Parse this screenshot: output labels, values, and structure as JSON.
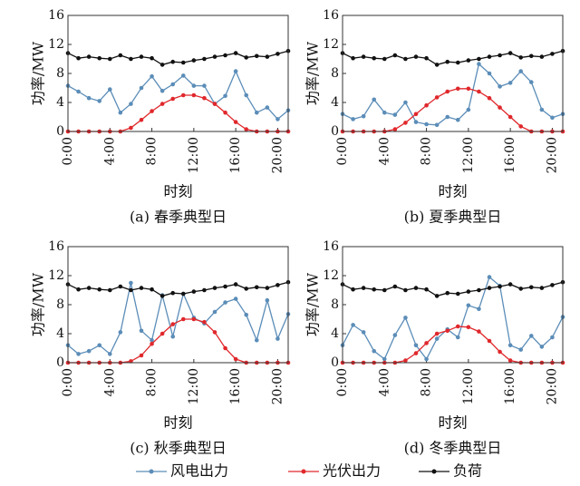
{
  "chart_data": [
    {
      "type": "line",
      "title": "(a) 春季典型日",
      "xlabel": "时刻",
      "ylabel": "功率/MW",
      "x": [
        0,
        1,
        2,
        3,
        4,
        5,
        6,
        7,
        8,
        9,
        10,
        11,
        12,
        13,
        14,
        15,
        16,
        17,
        18,
        19,
        20,
        21
      ],
      "xlim": [
        0,
        21
      ],
      "xticks": [
        {
          "value": 0,
          "label": "0:00"
        },
        {
          "value": 4,
          "label": "4:00"
        },
        {
          "value": 8,
          "label": "8:00"
        },
        {
          "value": 12,
          "label": "12:00"
        },
        {
          "value": 16,
          "label": "16:00"
        },
        {
          "value": 20,
          "label": "20:00"
        }
      ],
      "ylim": [
        0,
        16
      ],
      "yticks": [
        0,
        4,
        8,
        12,
        16
      ],
      "series": [
        {
          "name": "风电出力",
          "color": "#5b8db8",
          "values": [
            6.3,
            5.5,
            4.6,
            4.2,
            5.8,
            2.6,
            3.8,
            6.0,
            7.6,
            5.6,
            6.5,
            7.7,
            6.3,
            6.3,
            3.8,
            4.9,
            8.3,
            5.0,
            2.6,
            3.3,
            1.7,
            2.9
          ]
        },
        {
          "name": "光伏出力",
          "color": "#e0282c",
          "values": [
            0,
            0,
            0,
            0,
            0,
            0,
            0.5,
            1.6,
            2.8,
            3.8,
            4.5,
            5.0,
            5.0,
            4.6,
            3.8,
            2.6,
            1.3,
            0.3,
            0,
            0,
            0,
            0
          ]
        },
        {
          "name": "负荷",
          "color": "#111111",
          "values": [
            10.8,
            10.1,
            10.3,
            10.1,
            10.0,
            10.5,
            10.0,
            10.3,
            10.1,
            9.2,
            9.6,
            9.5,
            9.8,
            10.0,
            10.3,
            10.5,
            10.8,
            10.2,
            10.4,
            10.3,
            10.7,
            11.1
          ]
        }
      ]
    },
    {
      "type": "line",
      "title": "(b) 夏季典型日",
      "xlabel": "时刻",
      "ylabel": "功率/MW",
      "x": [
        0,
        1,
        2,
        3,
        4,
        5,
        6,
        7,
        8,
        9,
        10,
        11,
        12,
        13,
        14,
        15,
        16,
        17,
        18,
        19,
        20,
        21
      ],
      "xlim": [
        0,
        21
      ],
      "xticks": [
        {
          "value": 0,
          "label": "0:00"
        },
        {
          "value": 4,
          "label": "4:00"
        },
        {
          "value": 8,
          "label": "8:00"
        },
        {
          "value": 12,
          "label": "12:00"
        },
        {
          "value": 16,
          "label": "16:00"
        },
        {
          "value": 20,
          "label": "20:00"
        }
      ],
      "ylim": [
        0,
        16
      ],
      "yticks": [
        0,
        4,
        8,
        12,
        16
      ],
      "series": [
        {
          "name": "风电出力",
          "color": "#5b8db8",
          "values": [
            2.4,
            1.7,
            2.1,
            4.4,
            2.6,
            2.3,
            4.0,
            1.3,
            1.0,
            0.9,
            2.0,
            1.6,
            3.0,
            9.3,
            8.0,
            6.2,
            6.7,
            8.3,
            6.8,
            3.0,
            1.9,
            2.4
          ]
        },
        {
          "name": "光伏出力",
          "color": "#e0282c",
          "values": [
            0,
            0,
            0,
            0,
            0,
            0.3,
            1.2,
            2.4,
            3.6,
            4.7,
            5.5,
            5.9,
            5.9,
            5.5,
            4.6,
            3.3,
            2.0,
            0.7,
            0,
            0,
            0,
            0
          ]
        },
        {
          "name": "负荷",
          "color": "#111111",
          "values": [
            10.8,
            10.1,
            10.3,
            10.1,
            10.0,
            10.5,
            10.0,
            10.3,
            10.1,
            9.2,
            9.6,
            9.5,
            9.8,
            10.0,
            10.3,
            10.5,
            10.8,
            10.2,
            10.4,
            10.3,
            10.7,
            11.1
          ]
        }
      ]
    },
    {
      "type": "line",
      "title": "(c) 秋季典型日",
      "xlabel": "时刻",
      "ylabel": "功率/MW",
      "x": [
        0,
        1,
        2,
        3,
        4,
        5,
        6,
        7,
        8,
        9,
        10,
        11,
        12,
        13,
        14,
        15,
        16,
        17,
        18,
        19,
        20,
        21
      ],
      "xlim": [
        0,
        21
      ],
      "xticks": [
        {
          "value": 0,
          "label": "0:00"
        },
        {
          "value": 4,
          "label": "4:00"
        },
        {
          "value": 8,
          "label": "8:00"
        },
        {
          "value": 12,
          "label": "12:00"
        },
        {
          "value": 16,
          "label": "16:00"
        },
        {
          "value": 20,
          "label": "20:00"
        }
      ],
      "ylim": [
        0,
        16
      ],
      "yticks": [
        0,
        4,
        8,
        12,
        16
      ],
      "series": [
        {
          "name": "风电出力",
          "color": "#5b8db8",
          "values": [
            2.4,
            1.2,
            1.6,
            2.4,
            1.2,
            4.2,
            11.0,
            4.4,
            3.1,
            9.3,
            3.6,
            9.5,
            6.2,
            5.4,
            7.0,
            8.3,
            8.8,
            6.6,
            3.1,
            8.6,
            3.3,
            6.7
          ]
        },
        {
          "name": "光伏出力",
          "color": "#e0282c",
          "values": [
            0,
            0,
            0,
            0,
            0,
            0,
            0.2,
            1.0,
            2.6,
            4.0,
            5.3,
            6.0,
            6.0,
            5.6,
            4.2,
            2.0,
            0.5,
            0,
            0,
            0,
            0,
            0
          ]
        },
        {
          "name": "负荷",
          "color": "#111111",
          "values": [
            10.8,
            10.1,
            10.3,
            10.1,
            10.0,
            10.5,
            10.0,
            10.3,
            10.1,
            9.2,
            9.6,
            9.5,
            9.8,
            10.0,
            10.3,
            10.5,
            10.8,
            10.2,
            10.4,
            10.3,
            10.7,
            11.1
          ]
        }
      ]
    },
    {
      "type": "line",
      "title": "(d) 冬季典型日",
      "xlabel": "时刻",
      "ylabel": "功率/MW",
      "x": [
        0,
        1,
        2,
        3,
        4,
        5,
        6,
        7,
        8,
        9,
        10,
        11,
        12,
        13,
        14,
        15,
        16,
        17,
        18,
        19,
        20,
        21
      ],
      "xlim": [
        0,
        21
      ],
      "xticks": [
        {
          "value": 0,
          "label": "0:00"
        },
        {
          "value": 4,
          "label": "4:00"
        },
        {
          "value": 8,
          "label": "8:00"
        },
        {
          "value": 12,
          "label": "12:00"
        },
        {
          "value": 16,
          "label": "16:00"
        },
        {
          "value": 20,
          "label": "20:00"
        }
      ],
      "ylim": [
        0,
        16
      ],
      "yticks": [
        0,
        4,
        8,
        12,
        16
      ],
      "series": [
        {
          "name": "风电出力",
          "color": "#5b8db8",
          "values": [
            2.4,
            5.2,
            4.2,
            1.6,
            0.5,
            3.8,
            6.2,
            2.4,
            0.5,
            3.3,
            4.6,
            3.5,
            7.9,
            7.4,
            11.8,
            10.6,
            2.4,
            1.8,
            3.7,
            2.2,
            3.5,
            6.3
          ]
        },
        {
          "name": "光伏出力",
          "color": "#e0282c",
          "values": [
            0,
            0,
            0,
            0,
            0,
            0,
            0.3,
            1.3,
            2.7,
            4.0,
            4.4,
            5.0,
            4.9,
            4.3,
            3.0,
            1.5,
            0.3,
            0,
            0,
            0,
            0,
            0
          ]
        },
        {
          "name": "负荷",
          "color": "#111111",
          "values": [
            10.8,
            10.1,
            10.3,
            10.1,
            10.0,
            10.5,
            10.0,
            10.3,
            10.1,
            9.2,
            9.6,
            9.5,
            9.8,
            10.0,
            10.3,
            10.5,
            10.8,
            10.2,
            10.4,
            10.3,
            10.7,
            11.1
          ]
        }
      ]
    }
  ]
}
